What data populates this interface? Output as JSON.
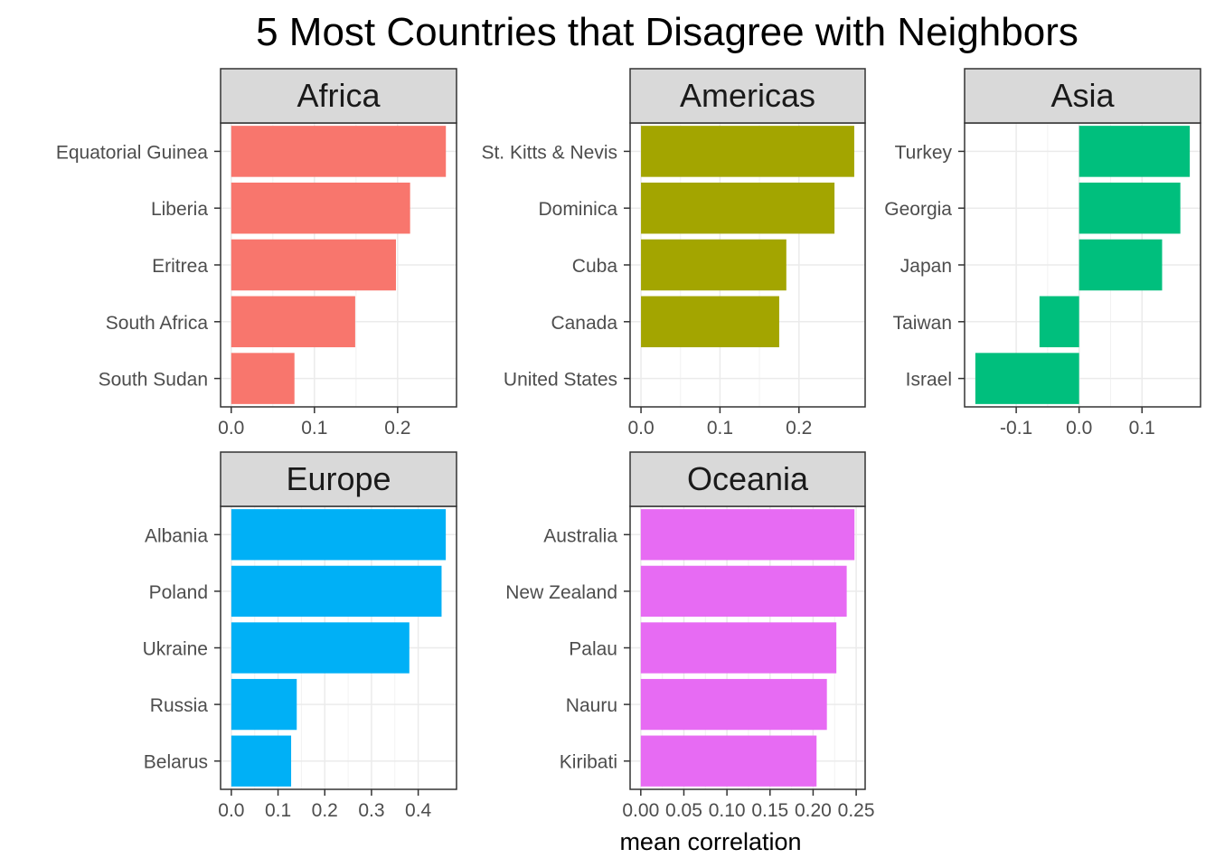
{
  "chart_data": {
    "type": "bar",
    "orientation": "horizontal",
    "title": "5 Most Countries that Disagree with Neighbors",
    "xlabel": "mean correlation",
    "ylabel": "",
    "grid": true,
    "facets": [
      {
        "name": "Africa",
        "color": "#F8766D",
        "categories": [
          "Equatorial Guinea",
          "Liberia",
          "Eritrea",
          "South Africa",
          "South Sudan"
        ],
        "values": [
          0.258,
          0.215,
          0.198,
          0.149,
          0.076
        ],
        "xlim": [
          -0.0128,
          0.2708
        ],
        "ticks": [
          0.0,
          0.1,
          0.2
        ],
        "tick_labels": [
          "0.0",
          "0.1",
          "0.2"
        ]
      },
      {
        "name": "Americas",
        "color": "#A3A500",
        "categories": [
          "St. Kitts & Nevis",
          "Dominica",
          "Cuba",
          "Canada",
          "United States"
        ],
        "values": [
          0.27,
          0.245,
          0.184,
          0.175,
          0.0
        ],
        "xlim": [
          -0.0138,
          0.2838
        ],
        "ticks": [
          0.0,
          0.1,
          0.2
        ],
        "tick_labels": [
          "0.0",
          "0.1",
          "0.2"
        ]
      },
      {
        "name": "Asia",
        "color": "#00BF7D",
        "categories": [
          "Turkey",
          "Georgia",
          "Japan",
          "Taiwan",
          "Israel"
        ],
        "values": [
          0.176,
          0.161,
          0.132,
          -0.063,
          -0.165
        ],
        "xlim": [
          -0.1821,
          0.1931
        ],
        "ticks": [
          -0.1,
          0.0,
          0.1
        ],
        "tick_labels": [
          "-0.1",
          "0.0",
          "0.1"
        ]
      },
      {
        "name": "Europe",
        "color": "#00B0F6",
        "categories": [
          "Albania",
          "Poland",
          "Ukraine",
          "Russia",
          "Belarus"
        ],
        "values": [
          0.459,
          0.45,
          0.381,
          0.14,
          0.128
        ],
        "xlim": [
          -0.023,
          0.482
        ],
        "ticks": [
          0.0,
          0.1,
          0.2,
          0.3,
          0.4
        ],
        "tick_labels": [
          "0.0",
          "0.1",
          "0.2",
          "0.3",
          "0.4"
        ]
      },
      {
        "name": "Oceania",
        "color": "#E76BF3",
        "categories": [
          "Australia",
          "New Zealand",
          "Palau",
          "Nauru",
          "Kiribati"
        ],
        "values": [
          0.248,
          0.239,
          0.227,
          0.216,
          0.204
        ],
        "xlim": [
          -0.0124,
          0.2604
        ],
        "ticks": [
          0.0,
          0.05,
          0.1,
          0.15,
          0.2,
          0.25
        ],
        "tick_labels": [
          "0.00",
          "0.05",
          "0.10",
          "0.15",
          "0.20",
          "0.25"
        ]
      }
    ]
  }
}
